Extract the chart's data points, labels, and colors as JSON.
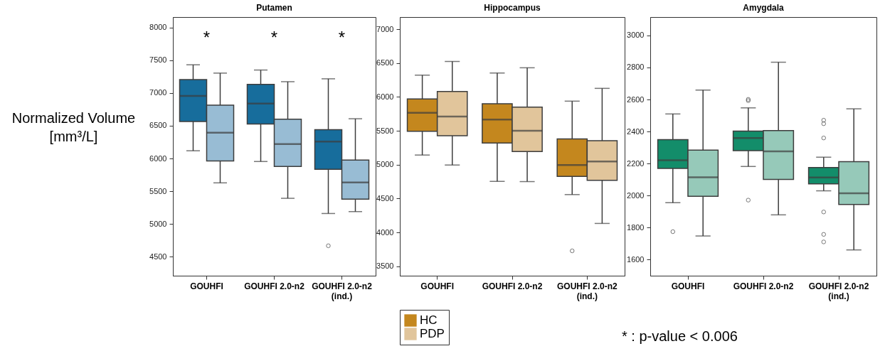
{
  "chart_data": [
    {
      "type": "box",
      "title": "Putamen",
      "ylabel": "Normalized Volume [mm³/L]",
      "categories": [
        "GOUHFI",
        "GOUHFI 2.0-n2",
        "GOUHFI 2.0-n2 (ind.)"
      ],
      "ylim": [
        4210,
        8160
      ],
      "yticks": [
        4500,
        5000,
        5500,
        6000,
        6500,
        7000,
        7500,
        8000
      ],
      "grid": false,
      "legend": false,
      "series": [
        {
          "color": "#176d9c",
          "boxes": [
            {
              "low": 6118,
              "q1": 6564,
              "median": 6955,
              "q3": 7206,
              "high": 7431
            },
            {
              "low": 5954,
              "q1": 6527,
              "median": 6839,
              "q3": 7133,
              "high": 7351
            },
            {
              "low": 5160,
              "q1": 5835,
              "median": 6259,
              "q3": 6440,
              "high": 7217,
              "outliers": [
                4667
              ]
            }
          ]
        },
        {
          "color": "#98bcd4",
          "boxes": [
            {
              "low": 5628,
              "q1": 5962,
              "median": 6393,
              "q3": 6814,
              "high": 7304
            },
            {
              "low": 5392,
              "q1": 5878,
              "median": 6219,
              "q3": 6600,
              "high": 7173
            },
            {
              "low": 5189,
              "q1": 5378,
              "median": 5635,
              "q3": 5976,
              "high": 6607
            }
          ]
        }
      ],
      "annotations": [
        "*",
        "*",
        "*"
      ]
    },
    {
      "type": "box",
      "title": "Hippocampus",
      "categories": [
        "GOUHFI",
        "GOUHFI 2.0-n2",
        "GOUHFI 2.0-n2 (ind.)"
      ],
      "ylim": [
        3360,
        7180
      ],
      "yticks": [
        3500,
        4000,
        4500,
        5000,
        5500,
        6000,
        6500,
        7000
      ],
      "grid": false,
      "legend": "bottom",
      "series": [
        {
          "name": "HC",
          "color": "#c4871e",
          "boxes": [
            {
              "low": 5142,
              "q1": 5494,
              "median": 5767,
              "q3": 5970,
              "high": 6322
            },
            {
              "low": 4754,
              "q1": 5320,
              "median": 5666,
              "q3": 5900,
              "high": 6354
            },
            {
              "low": 4558,
              "q1": 4827,
              "median": 4995,
              "q3": 5379,
              "high": 5938,
              "outliers": [
                3727
              ]
            }
          ]
        },
        {
          "name": "PDP",
          "color": "#e1c59b",
          "boxes": [
            {
              "low": 4995,
              "q1": 5428,
              "median": 5711,
              "q3": 6081,
              "high": 6525
            },
            {
              "low": 4750,
              "q1": 5194,
              "median": 5501,
              "q3": 5851,
              "high": 6431
            },
            {
              "low": 4132,
              "q1": 4768,
              "median": 5047,
              "q3": 5355,
              "high": 6127
            }
          ]
        }
      ],
      "annotations": [
        "* : p-value < 0.006"
      ]
    },
    {
      "type": "box",
      "title": "Amygdala",
      "categories": [
        "GOUHFI",
        "GOUHFI 2.0-n2",
        "GOUHFI 2.0-n2 (ind.)"
      ],
      "ylim": [
        1500,
        3115
      ],
      "yticks": [
        1600,
        1800,
        2000,
        2200,
        2400,
        2600,
        2800,
        3000
      ],
      "grid": false,
      "legend": false,
      "series": [
        {
          "color": "#138d6a",
          "boxes": [
            {
              "low": 1956,
              "q1": 2170,
              "median": 2221,
              "q3": 2350,
              "high": 2510,
              "outliers": [
                1775
              ]
            },
            {
              "low": 2182,
              "q1": 2281,
              "median": 2360,
              "q3": 2403,
              "high": 2548,
              "outliers": [
                2601,
                2593,
                1972
              ]
            },
            {
              "low": 2030,
              "q1": 2074,
              "median": 2113,
              "q3": 2175,
              "high": 2240,
              "outliers": [
                2471,
                2449,
                2360,
                1898,
                1758,
                1711
              ]
            }
          ]
        },
        {
          "color": "#96c9b9",
          "boxes": [
            {
              "low": 1748,
              "q1": 1996,
              "median": 2114,
              "q3": 2284,
              "high": 2659
            },
            {
              "low": 1880,
              "q1": 2101,
              "median": 2276,
              "q3": 2406,
              "high": 2833
            },
            {
              "low": 1661,
              "q1": 1945,
              "median": 2015,
              "q3": 2212,
              "high": 2542
            }
          ]
        }
      ]
    }
  ]
}
